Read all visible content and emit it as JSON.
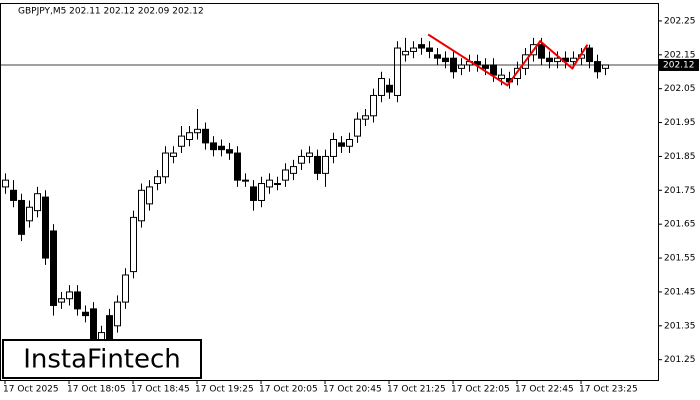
{
  "chart_data": {
    "type": "candlestick",
    "title": "GBPJPY,M5  202.11 202.12 202.09 202.12",
    "categories": [
      "17 Oct 2025",
      null,
      null,
      null,
      null,
      null,
      null,
      null,
      "17 Oct 18:05",
      null,
      null,
      null,
      null,
      null,
      null,
      null,
      "17 Oct 18:45",
      null,
      null,
      null,
      null,
      null,
      null,
      null,
      "17 Oct 19:25",
      null,
      null,
      null,
      null,
      null,
      null,
      null,
      "17 Oct 20:05",
      null,
      null,
      null,
      null,
      null,
      null,
      null,
      "17 Oct 20:45",
      null,
      null,
      null,
      null,
      null,
      null,
      null,
      "17 Oct 21:25",
      null,
      null,
      null,
      null,
      null,
      null,
      null,
      "17 Oct 22:05",
      null,
      null,
      null,
      null,
      null,
      null,
      null,
      "17 Oct 22:45",
      null,
      null,
      null,
      null,
      null,
      null,
      null,
      "17 Oct 23:25",
      null,
      null,
      null
    ],
    "open": [
      201.76,
      201.75,
      201.72,
      201.66,
      201.69,
      201.73,
      201.63,
      201.42,
      201.43,
      201.45,
      201.39,
      201.4,
      201.29,
      201.38,
      201.35,
      201.42,
      201.51,
      201.66,
      201.71,
      201.77,
      201.79,
      201.85,
      201.88,
      201.9,
      201.92,
      201.93,
      201.89,
      201.88,
      201.87,
      201.86,
      201.78,
      201.76,
      201.72,
      201.76,
      201.77,
      201.78,
      201.8,
      201.83,
      201.85,
      201.85,
      201.8,
      201.85,
      201.89,
      201.88,
      201.91,
      201.96,
      201.97,
      202.03,
      202.06,
      202.03,
      202.15,
      202.16,
      202.18,
      202.17,
      202.15,
      202.14,
      202.14,
      202.11,
      202.12,
      202.13,
      202.12,
      202.12,
      202.08,
      202.08,
      202.08,
      202.11,
      202.15,
      202.18,
      202.14,
      202.13,
      202.14,
      202.13,
      202.14,
      202.17,
      202.13,
      202.11
    ],
    "high": [
      201.8,
      201.78,
      201.74,
      201.72,
      201.76,
      201.75,
      201.65,
      201.45,
      201.47,
      201.47,
      201.41,
      201.42,
      201.35,
      201.4,
      201.44,
      201.52,
      201.69,
      201.77,
      201.78,
      201.81,
      201.88,
      201.88,
      201.94,
      201.94,
      201.99,
      201.95,
      201.91,
      201.9,
      201.89,
      201.88,
      201.8,
      201.78,
      201.79,
      201.8,
      201.79,
      201.83,
      201.84,
      201.87,
      201.88,
      201.87,
      201.87,
      201.92,
      201.91,
      201.92,
      201.98,
      201.99,
      202.05,
      202.1,
      202.08,
      202.19,
      202.2,
      202.19,
      202.2,
      202.19,
      202.17,
      202.16,
      202.16,
      202.14,
      202.15,
      202.15,
      202.14,
      202.14,
      202.11,
      202.1,
      202.13,
      202.17,
      202.2,
      202.2,
      202.16,
      202.16,
      202.16,
      202.16,
      202.17,
      202.18,
      202.15,
      202.12
    ],
    "low": [
      201.74,
      201.7,
      201.6,
      201.64,
      201.67,
      201.53,
      201.38,
      201.4,
      201.41,
      201.38,
      201.36,
      201.26,
      201.27,
      201.28,
      201.33,
      201.4,
      201.49,
      201.64,
      201.69,
      201.75,
      201.77,
      201.83,
      201.86,
      201.88,
      201.9,
      201.87,
      201.85,
      201.85,
      201.84,
      201.76,
      201.76,
      201.69,
      201.7,
      201.74,
      201.75,
      201.76,
      201.78,
      201.81,
      201.83,
      201.78,
      201.76,
      201.83,
      201.86,
      201.86,
      201.89,
      201.94,
      201.95,
      202.01,
      202.02,
      202.01,
      202.13,
      202.14,
      202.15,
      202.14,
      202.12,
      202.11,
      202.08,
      202.09,
      202.1,
      202.1,
      202.09,
      202.07,
      202.06,
      202.05,
      202.06,
      202.09,
      202.13,
      202.12,
      202.11,
      202.11,
      202.11,
      202.11,
      202.12,
      202.11,
      202.08,
      202.09
    ],
    "close": [
      201.78,
      201.72,
      201.62,
      201.7,
      201.74,
      201.55,
      201.41,
      201.43,
      201.45,
      201.4,
      201.38,
      201.28,
      201.33,
      201.3,
      201.42,
      201.5,
      201.67,
      201.75,
      201.76,
      201.79,
      201.86,
      201.86,
      201.91,
      201.92,
      201.93,
      201.89,
      201.87,
      201.87,
      201.86,
      201.78,
      201.78,
      201.72,
      201.77,
      201.78,
      201.77,
      201.81,
      201.82,
      201.85,
      201.86,
      201.8,
      201.85,
      201.9,
      201.88,
      201.9,
      201.96,
      201.97,
      202.03,
      202.08,
      202.04,
      202.17,
      202.16,
      202.17,
      202.17,
      202.16,
      202.14,
      202.13,
      202.1,
      202.12,
      202.13,
      202.12,
      202.11,
      202.09,
      202.09,
      202.07,
      202.11,
      202.15,
      202.18,
      202.14,
      202.13,
      202.14,
      202.13,
      202.14,
      202.15,
      202.13,
      202.1,
      202.12
    ],
    "up_color": "#ffffff",
    "down_color": "#000000",
    "ylim": [
      201.19,
      202.3
    ],
    "yticks": [
      201.25,
      201.35,
      201.45,
      201.55,
      201.65,
      201.75,
      201.85,
      201.95,
      202.05,
      202.15,
      202.25
    ],
    "current_price": 202.12,
    "pattern": {
      "color": "#ee0000",
      "x": [
        52.9,
        62.8,
        66.9,
        70.9,
        72.8
      ],
      "y": [
        202.21,
        202.06,
        202.19,
        202.11,
        202.18
      ]
    },
    "watermark": "InstaFintech"
  }
}
